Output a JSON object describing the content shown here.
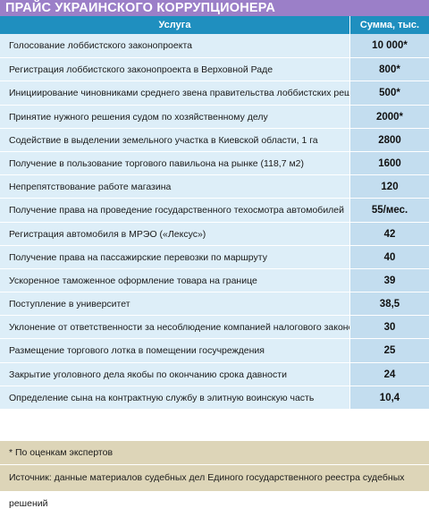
{
  "title": "ПРАЙС УКРАИНСКОГО КОРРУПЦИОНЕРА",
  "header": {
    "service": "Услуга",
    "sum": "Сумма, тыс. грн."
  },
  "rows": [
    {
      "service": "Голосование лоббистского законопроекта",
      "amount": "10 000*"
    },
    {
      "service": "Регистрация лоббистского законопроекта в Верховной Раде",
      "amount": "800*"
    },
    {
      "service": "Инициирование чиновниками среднего звена правительства лоббистских решений",
      "amount": "500*"
    },
    {
      "service": "Принятие нужного решения судом по хозяйственному делу",
      "amount": "2000*"
    },
    {
      "service": "Содействие в выделении земельного участка в Киевской области, 1 га",
      "amount": "2800"
    },
    {
      "service": "Получение в пользование торгового павильона на рынке (118,7 м2)",
      "amount": "1600"
    },
    {
      "service": "Непрепятствование работе магазина",
      "amount": "120"
    },
    {
      "service": "Получение права на проведение государственного техосмотра автомобилей",
      "amount": "55/мес."
    },
    {
      "service": "Регистрация автомобиля в МРЭО («Лексус»)",
      "amount": "42"
    },
    {
      "service": "Получение права на пассажирские перевозки по маршруту",
      "amount": "40"
    },
    {
      "service": "Ускоренное таможенное оформление товара на границе",
      "amount": "39"
    },
    {
      "service": "Поступление в университет",
      "amount": "38,5"
    },
    {
      "service": "Уклонение от ответственности за несоблюдение компанией налогового законодательства",
      "amount": "30"
    },
    {
      "service": "Размещение торгового лотка в помещении госучреждения",
      "amount": "25"
    },
    {
      "service": "Закрытие уголовного дела якобы по окончанию срока давности",
      "amount": "24"
    },
    {
      "service": "Определение сына на контрактную службу в элитную воинскую часть",
      "amount": "10,4"
    }
  ],
  "footnote": "* По оценкам экспертов",
  "source": "Источник: данные материалов судебных дел Единого государственного реестра судебных решений"
}
